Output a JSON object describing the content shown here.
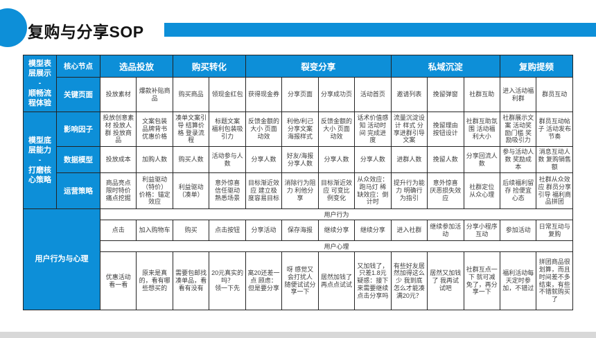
{
  "page": {
    "title": "复购与分享SOP",
    "accent_color": "#0d8fd8"
  },
  "table": {
    "corner_label": "核心节点",
    "row_groups": [
      {
        "label": "模型表层展示\n-\n顺畅流程体验"
      },
      {
        "label": "模型底层能力\n-\n打磨核心策略"
      },
      {
        "label": "用户行为与心理"
      }
    ],
    "column_groups": [
      {
        "label": "选品投放",
        "span": 2
      },
      {
        "label": "购买转化",
        "span": 2
      },
      {
        "label": "裂变分享",
        "span": 4
      },
      {
        "label": "私域沉淀",
        "span": 3
      },
      {
        "label": "复购提频",
        "span": 2
      }
    ],
    "rows": [
      {
        "label": "关键页面",
        "cells": [
          "投放素材",
          "爆款补贴商品",
          "购买商品",
          "领现金红包",
          "获得现金券",
          "分享页面",
          "分享成功页",
          "活动首页",
          "邀请列表",
          "挽留弹窗",
          "社群互助",
          "进入活动福利群",
          "群员互动"
        ]
      },
      {
        "label": "影响因子",
        "cells": [
          "投放创意素材 投放人群 投放商品",
          "文案包装 品牌背书 优惠价格",
          "凑单文案引导 结算价格 登录流程",
          "标题文案 福利包装吸引力",
          "反馈金额的大小 页面动效",
          "利他/利己分享文案 海报样式",
          "反馈金额的大小 页面动效",
          "话术价值感知 活动时间 完成进度",
          "流量沉淀设计 样式 分享进群引导文案",
          "挽留理由 按钮设计",
          "社群互助氛围 活动福利大小",
          "社群展示文案 活动奖励门槛 奖励吸引力",
          "群员互动帖子 活动发布节奏"
        ]
      },
      {
        "label": "数据模型",
        "cells": [
          "投放成本",
          "加购人数",
          "购买人数",
          "活动参与人数",
          "分享人数",
          "好友/海报分享人数",
          "分享人数",
          "分享人数",
          "进群人数",
          "挽留人数",
          "分享回流人数",
          "参与活动人数 奖励成本",
          "消息互动人数 复购销售额"
        ]
      },
      {
        "label": "运营策略",
        "cells": [
          "商品亮点 限时特价 痛点挖掘",
          "利益驱动（特价）\n价格：锚定效应",
          "利益驱动\n（凑单）",
          "意外惊喜 信任驱动 熟悉场景",
          "目标渐近效应 建立极度容易目标",
          "消除行为阻力 利他分享",
          "目标渐近效应 可变比例变化",
          "从众效应：跑马灯 稀缺效应：倒计时",
          "提升行为能力 明确行为指引",
          "意外惊喜 厌恶损失效应",
          "社群定位 从众心理",
          "后续福利留存 捡便宜心态",
          "社群从众效应 群员分享引导 福利商品拼团"
        ]
      }
    ],
    "bottom_section": {
      "label": "用户行为与心理",
      "behavior_header": "用户行为",
      "behavior_cells": [
        "点击",
        "加入购物车",
        "购买",
        "点击按钮",
        "分享活动",
        "保存海报",
        "继续分享",
        "继续分享",
        "进入社群",
        "继续参加活动",
        "分享小程序 互动",
        "参加活动",
        "日常互动与复购"
      ],
      "psychology_header": "用户心理",
      "psychology_cells": [
        "优惠活动\n看一看",
        "原来是真的，看有哪些想买的",
        "需要包邮找凑单品，看看有没有",
        "20元真实的吗？\n领一下先",
        "离20还差一点 顾虑：但是要分享",
        "呀 感觉又会打扰人 随便试试分享一下",
        "居然加钱了 再点点试试",
        "又加钱了，只差1.8元 疑惑：接下来需要继续点击分享吗",
        "有些好友居然加得这么少 我到底怎么才能凑满20元？",
        "居然又加钱了 我再试试吧",
        "社群互点一下 就可减免了，再分享一下",
        "福利活动每天定时参加，不错过",
        "拼团商品很划算，而且时间差不多结束，有些不错就购买了"
      ]
    }
  }
}
